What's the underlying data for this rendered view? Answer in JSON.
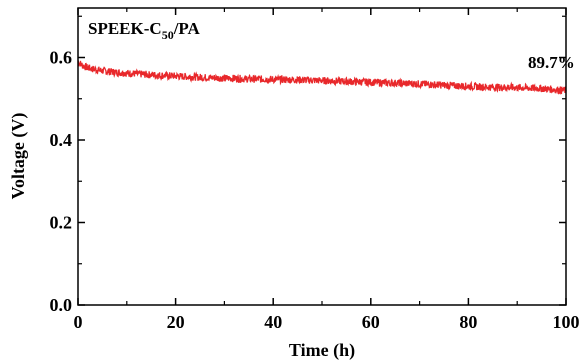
{
  "chart_data": {
    "type": "line",
    "title": "SPEEK-C50/PA",
    "title_parts": {
      "prefix": "SPEEK-C",
      "subscript": "50",
      "suffix": "/PA"
    },
    "xlabel": "Time (h)",
    "ylabel": "Voltage (V)",
    "xlim": [
      0,
      100
    ],
    "ylim": [
      0,
      0.72
    ],
    "xticks": [
      0,
      20,
      40,
      60,
      80,
      100
    ],
    "yticks": [
      0.0,
      0.2,
      0.4,
      0.6
    ],
    "ytick_labels": [
      "0.0",
      "0.2",
      "0.4",
      "0.6"
    ],
    "grid": false,
    "series": [
      {
        "color": "#e8282b",
        "x": [
          0,
          0.5,
          1,
          2,
          3,
          5,
          7,
          10,
          15,
          20,
          25,
          30,
          35,
          40,
          45,
          50,
          55,
          60,
          65,
          70,
          75,
          80,
          85,
          90,
          95,
          98,
          100
        ],
        "y": [
          0.59,
          0.585,
          0.58,
          0.575,
          0.572,
          0.568,
          0.565,
          0.562,
          0.558,
          0.555,
          0.552,
          0.55,
          0.548,
          0.547,
          0.546,
          0.544,
          0.542,
          0.54,
          0.538,
          0.536,
          0.533,
          0.53,
          0.528,
          0.527,
          0.525,
          0.522,
          0.52
        ]
      }
    ],
    "annotations": [
      {
        "text": "89.7%",
        "x": 97,
        "y": 0.575
      }
    ]
  }
}
